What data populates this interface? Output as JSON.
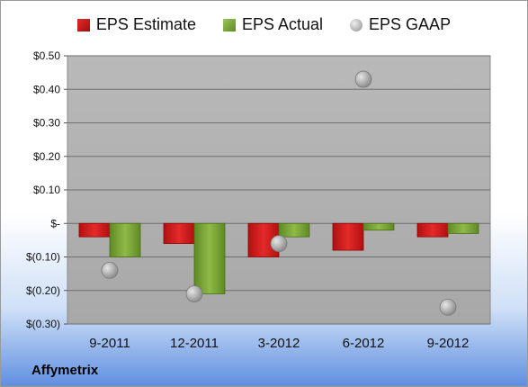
{
  "chart_data": {
    "type": "bar",
    "categories": [
      "9-2011",
      "12-2011",
      "3-2012",
      "6-2012",
      "9-2012"
    ],
    "series": [
      {
        "name": "EPS Estimate",
        "kind": "bar",
        "color": "#d81e1e",
        "values": [
          -0.04,
          -0.06,
          -0.1,
          -0.08,
          -0.04
        ]
      },
      {
        "name": "EPS Actual",
        "kind": "bar",
        "color": "#7da63a",
        "values": [
          -0.1,
          -0.21,
          -0.04,
          -0.02,
          -0.03
        ]
      },
      {
        "name": "EPS GAAP",
        "kind": "marker",
        "color": "#a6a6a6",
        "values": [
          -0.14,
          -0.21,
          -0.06,
          0.43,
          -0.25
        ]
      }
    ],
    "y_ticks": [
      {
        "value": 0.5,
        "label": "$0.50"
      },
      {
        "value": 0.4,
        "label": "$0.40"
      },
      {
        "value": 0.3,
        "label": "$0.30"
      },
      {
        "value": 0.2,
        "label": "$0.20"
      },
      {
        "value": 0.1,
        "label": "$0.10"
      },
      {
        "value": 0.0,
        "label": "$-"
      },
      {
        "value": -0.1,
        "label": "$(0.10)"
      },
      {
        "value": -0.2,
        "label": "$(0.20)"
      },
      {
        "value": -0.3,
        "label": "$(0.30)"
      }
    ],
    "ylim": [
      -0.3,
      0.5
    ],
    "grid": true,
    "legend_position": "top",
    "plot_background": "#b4b4b4"
  },
  "footer": {
    "company": "Affymetrix"
  }
}
